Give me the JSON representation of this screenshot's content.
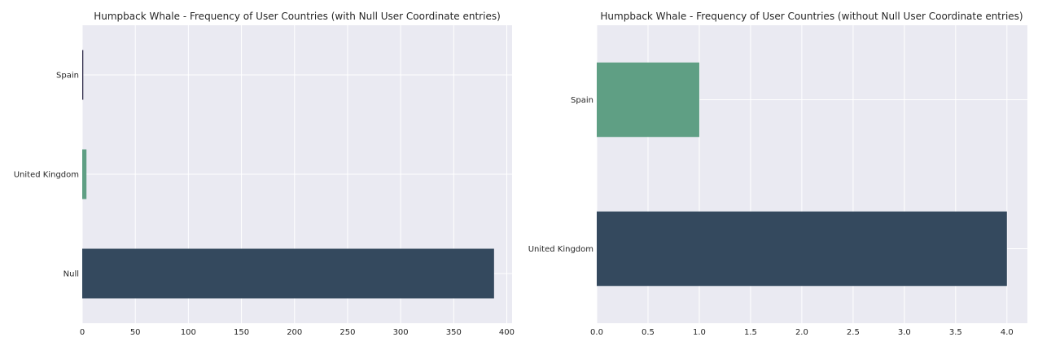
{
  "chart_data": [
    {
      "type": "bar",
      "orientation": "horizontal",
      "title": "Humpback Whale - Frequency of User Countries (with Null User Coordinate entries)",
      "xlabel": "",
      "ylabel": "",
      "categories": [
        "Null",
        "United Kingdom",
        "Spain"
      ],
      "values": [
        388,
        4,
        1
      ],
      "colors": [
        "#34495e",
        "#5f9f84",
        "#2f2b4a"
      ],
      "xlim": [
        0,
        405
      ],
      "xticks": [
        0,
        50,
        100,
        150,
        200,
        250,
        300,
        350,
        400
      ],
      "xtick_labels": [
        "0",
        "50",
        "100",
        "150",
        "200",
        "250",
        "300",
        "350",
        "400"
      ],
      "grid": true,
      "background": "#eaeaf2"
    },
    {
      "type": "bar",
      "orientation": "horizontal",
      "title": "Humpback Whale - Frequency of User Countries (without Null User Coordinate entries)",
      "xlabel": "",
      "ylabel": "",
      "categories": [
        "United Kingdom",
        "Spain"
      ],
      "values": [
        4,
        1
      ],
      "colors": [
        "#34495e",
        "#5f9f84"
      ],
      "xlim": [
        0,
        4.2
      ],
      "xticks": [
        0,
        0.5,
        1,
        1.5,
        2,
        2.5,
        3,
        3.5,
        4
      ],
      "xtick_labels": [
        "0.0",
        "0.5",
        "1.0",
        "1.5",
        "2.0",
        "2.5",
        "3.0",
        "3.5",
        "4.0"
      ],
      "grid": true,
      "background": "#eaeaf2"
    }
  ]
}
